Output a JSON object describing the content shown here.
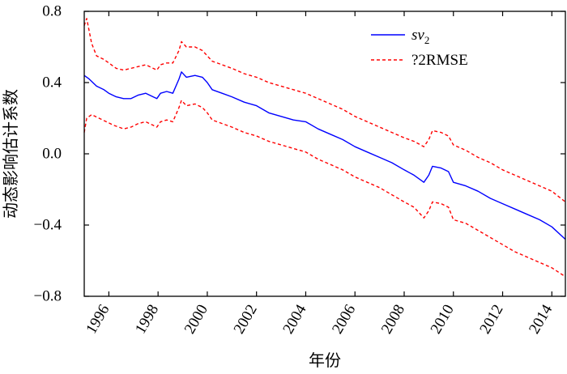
{
  "chart_data": {
    "type": "line",
    "title": "",
    "xlabel": "年份",
    "ylabel": "动态影响估计系数",
    "xlim": [
      1995.0,
      2014.55
    ],
    "ylim": [
      -0.8,
      0.8
    ],
    "x_ticks": [
      "1996",
      "1998",
      "2000",
      "2002",
      "2004",
      "2006",
      "2008",
      "2010",
      "2012",
      "2014"
    ],
    "y_ticks": [
      "0.8",
      "0.4",
      "0.0",
      "−0.4",
      "−0.8"
    ],
    "grid": false,
    "legend_position": "top-right",
    "series": [
      {
        "name": "sv2",
        "legend_label": {
          "base": "sv",
          "subscript": "2"
        },
        "style": "solid",
        "color": "#0000ff",
        "points": [
          [
            1995.0,
            0.44
          ],
          [
            1995.2,
            0.42
          ],
          [
            1995.5,
            0.38
          ],
          [
            1995.8,
            0.36
          ],
          [
            1996.0,
            0.34
          ],
          [
            1996.3,
            0.32
          ],
          [
            1996.6,
            0.31
          ],
          [
            1996.9,
            0.31
          ],
          [
            1997.2,
            0.33
          ],
          [
            1997.5,
            0.34
          ],
          [
            1997.8,
            0.32
          ],
          [
            1997.95,
            0.31
          ],
          [
            1998.1,
            0.34
          ],
          [
            1998.35,
            0.35
          ],
          [
            1998.6,
            0.34
          ],
          [
            1998.85,
            0.42
          ],
          [
            1998.95,
            0.46
          ],
          [
            1999.15,
            0.43
          ],
          [
            1999.5,
            0.44
          ],
          [
            1999.8,
            0.43
          ],
          [
            2000.0,
            0.4
          ],
          [
            2000.2,
            0.36
          ],
          [
            2000.6,
            0.34
          ],
          [
            2001.0,
            0.32
          ],
          [
            2001.5,
            0.29
          ],
          [
            2002.0,
            0.27
          ],
          [
            2002.5,
            0.23
          ],
          [
            2003.0,
            0.21
          ],
          [
            2003.5,
            0.19
          ],
          [
            2004.0,
            0.18
          ],
          [
            2004.5,
            0.14
          ],
          [
            2005.0,
            0.11
          ],
          [
            2005.5,
            0.08
          ],
          [
            2006.0,
            0.04
          ],
          [
            2006.5,
            0.01
          ],
          [
            2007.0,
            -0.02
          ],
          [
            2007.5,
            -0.05
          ],
          [
            2008.0,
            -0.09
          ],
          [
            2008.4,
            -0.12
          ],
          [
            2008.8,
            -0.16
          ],
          [
            2009.0,
            -0.12
          ],
          [
            2009.15,
            -0.07
          ],
          [
            2009.5,
            -0.08
          ],
          [
            2009.8,
            -0.1
          ],
          [
            2010.0,
            -0.16
          ],
          [
            2010.5,
            -0.18
          ],
          [
            2011.0,
            -0.21
          ],
          [
            2011.5,
            -0.25
          ],
          [
            2012.0,
            -0.28
          ],
          [
            2012.5,
            -0.31
          ],
          [
            2013.0,
            -0.34
          ],
          [
            2013.5,
            -0.37
          ],
          [
            2014.0,
            -0.41
          ],
          [
            2014.55,
            -0.48
          ]
        ]
      },
      {
        "name": "?2RMSE",
        "legend_label": {
          "base": "?2RMSE",
          "subscript": ""
        },
        "style": "dashed",
        "color": "#ff0000",
        "points": [
          [
            1995.0,
            0.72
          ],
          [
            1995.1,
            0.76
          ],
          [
            1995.3,
            0.62
          ],
          [
            1995.5,
            0.55
          ],
          [
            1995.8,
            0.53
          ],
          [
            1996.0,
            0.51
          ],
          [
            1996.3,
            0.48
          ],
          [
            1996.6,
            0.47
          ],
          [
            1996.9,
            0.48
          ],
          [
            1997.2,
            0.49
          ],
          [
            1997.5,
            0.5
          ],
          [
            1997.8,
            0.48
          ],
          [
            1997.95,
            0.47
          ],
          [
            1998.1,
            0.5
          ],
          [
            1998.35,
            0.51
          ],
          [
            1998.6,
            0.51
          ],
          [
            1998.85,
            0.58
          ],
          [
            1998.95,
            0.63
          ],
          [
            1999.15,
            0.6
          ],
          [
            1999.5,
            0.6
          ],
          [
            1999.8,
            0.58
          ],
          [
            2000.0,
            0.55
          ],
          [
            2000.2,
            0.52
          ],
          [
            2000.6,
            0.5
          ],
          [
            2001.0,
            0.48
          ],
          [
            2001.5,
            0.45
          ],
          [
            2002.0,
            0.43
          ],
          [
            2002.5,
            0.4
          ],
          [
            2003.0,
            0.38
          ],
          [
            2003.5,
            0.36
          ],
          [
            2004.0,
            0.34
          ],
          [
            2004.5,
            0.31
          ],
          [
            2005.0,
            0.28
          ],
          [
            2005.5,
            0.25
          ],
          [
            2006.0,
            0.21
          ],
          [
            2006.5,
            0.18
          ],
          [
            2007.0,
            0.15
          ],
          [
            2007.5,
            0.12
          ],
          [
            2008.0,
            0.09
          ],
          [
            2008.4,
            0.07
          ],
          [
            2008.8,
            0.04
          ],
          [
            2009.0,
            0.08
          ],
          [
            2009.15,
            0.13
          ],
          [
            2009.5,
            0.12
          ],
          [
            2009.8,
            0.1
          ],
          [
            2010.0,
            0.05
          ],
          [
            2010.5,
            0.02
          ],
          [
            2011.0,
            -0.02
          ],
          [
            2011.5,
            -0.05
          ],
          [
            2012.0,
            -0.09
          ],
          [
            2012.5,
            -0.12
          ],
          [
            2013.0,
            -0.15
          ],
          [
            2013.5,
            -0.18
          ],
          [
            2014.0,
            -0.21
          ],
          [
            2014.55,
            -0.27
          ]
        ]
      },
      {
        "name": "",
        "style": "dashed",
        "color": "#ff0000",
        "points": [
          [
            1995.0,
            0.12
          ],
          [
            1995.1,
            0.2
          ],
          [
            1995.3,
            0.22
          ],
          [
            1995.6,
            0.2
          ],
          [
            1995.9,
            0.18
          ],
          [
            1996.2,
            0.16
          ],
          [
            1996.6,
            0.14
          ],
          [
            1996.9,
            0.15
          ],
          [
            1997.2,
            0.17
          ],
          [
            1997.5,
            0.18
          ],
          [
            1997.8,
            0.16
          ],
          [
            1997.95,
            0.15
          ],
          [
            1998.1,
            0.18
          ],
          [
            1998.35,
            0.19
          ],
          [
            1998.6,
            0.18
          ],
          [
            1998.85,
            0.26
          ],
          [
            1998.95,
            0.3
          ],
          [
            1999.15,
            0.27
          ],
          [
            1999.5,
            0.28
          ],
          [
            1999.8,
            0.26
          ],
          [
            2000.0,
            0.23
          ],
          [
            2000.2,
            0.19
          ],
          [
            2000.6,
            0.17
          ],
          [
            2001.0,
            0.15
          ],
          [
            2001.5,
            0.12
          ],
          [
            2002.0,
            0.1
          ],
          [
            2002.5,
            0.07
          ],
          [
            2003.0,
            0.05
          ],
          [
            2003.5,
            0.03
          ],
          [
            2004.0,
            0.01
          ],
          [
            2004.5,
            -0.03
          ],
          [
            2005.0,
            -0.06
          ],
          [
            2005.5,
            -0.09
          ],
          [
            2006.0,
            -0.13
          ],
          [
            2006.5,
            -0.16
          ],
          [
            2007.0,
            -0.19
          ],
          [
            2007.5,
            -0.23
          ],
          [
            2008.0,
            -0.27
          ],
          [
            2008.4,
            -0.3
          ],
          [
            2008.8,
            -0.36
          ],
          [
            2009.0,
            -0.32
          ],
          [
            2009.15,
            -0.27
          ],
          [
            2009.5,
            -0.28
          ],
          [
            2009.8,
            -0.3
          ],
          [
            2010.0,
            -0.37
          ],
          [
            2010.5,
            -0.39
          ],
          [
            2011.0,
            -0.43
          ],
          [
            2011.5,
            -0.47
          ],
          [
            2012.0,
            -0.51
          ],
          [
            2012.5,
            -0.55
          ],
          [
            2013.0,
            -0.58
          ],
          [
            2013.5,
            -0.61
          ],
          [
            2014.0,
            -0.64
          ],
          [
            2014.55,
            -0.69
          ]
        ]
      }
    ]
  }
}
